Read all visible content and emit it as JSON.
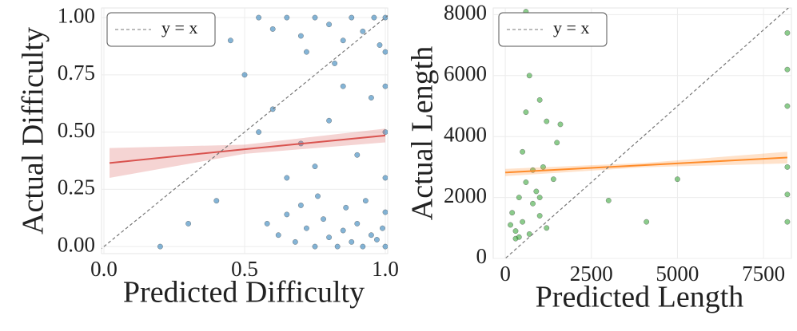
{
  "chart_data": [
    {
      "type": "scatter",
      "xlabel": "Predicted Difficulty",
      "ylabel": "Actual Difficulty",
      "color": "#1f77b4",
      "xlim": [
        -0.0085,
        1.0085
      ],
      "ylim": [
        -0.031,
        1.042
      ],
      "xticks": [
        {
          "value": 0,
          "label": "0.0"
        },
        {
          "value": 0.5,
          "label": "0.5"
        },
        {
          "value": 1,
          "label": "1.0"
        }
      ],
      "yticks": [
        {
          "value": 0,
          "label": "0.00"
        },
        0.25,
        {
          "value": 0.5,
          "label": "0.50"
        },
        0.75,
        {
          "value": 1,
          "label": "1.00"
        }
      ],
      "grid": true,
      "legend": "upper left",
      "legend_label": "y = x",
      "x": [
        0.62,
        0.68,
        0.72,
        0.75,
        0.78,
        0.8,
        0.83,
        0.85,
        0.88,
        0.9,
        0.92,
        0.95,
        0.97,
        1.0,
        1.0,
        0.7,
        0.76,
        0.86,
        0.93,
        0.58,
        0.65,
        0.99,
        0.55,
        0.6,
        0.65,
        0.7,
        0.75,
        0.8,
        0.85,
        0.88,
        0.92,
        0.96,
        1.0,
        1.0,
        0.98,
        0.72,
        0.82,
        0.6,
        0.7,
        0.8,
        0.9,
        0.95,
        0.65,
        0.85,
        0.75,
        0.5,
        0.45,
        0.4,
        0.3,
        0.2,
        1.0,
        1.0,
        1.0,
        0.55
      ],
      "y": [
        0.05,
        0.02,
        0.08,
        0.0,
        0.12,
        0.04,
        0.0,
        0.07,
        0.02,
        0.1,
        0.0,
        0.05,
        0.03,
        0.0,
        0.15,
        0.18,
        0.22,
        0.17,
        0.2,
        0.1,
        0.14,
        0.08,
        1.0,
        0.95,
        1.0,
        0.92,
        1.0,
        0.97,
        0.9,
        1.0,
        0.94,
        1.0,
        1.0,
        0.85,
        0.88,
        0.85,
        0.8,
        0.6,
        0.45,
        0.55,
        0.4,
        0.65,
        0.3,
        0.7,
        0.35,
        0.75,
        0.9,
        0.2,
        0.1,
        0.0,
        0.5,
        0.3,
        0.7,
        0.5
      ],
      "trend": {
        "color": "#d9534f",
        "x": [
          0.02,
          0.5,
          1.0
        ],
        "y": [
          0.365,
          0.425,
          0.485
        ],
        "lower": [
          0.3,
          0.405,
          0.455
        ],
        "upper": [
          0.43,
          0.445,
          0.515
        ]
      }
    },
    {
      "type": "scatter",
      "xlabel": "Predicted Length",
      "ylabel": "Actual Length",
      "color": "#2ca02c",
      "xlim": [
        -350,
        8310
      ],
      "ylim": [
        0,
        8220
      ],
      "xticks": [
        0,
        2500,
        5000,
        7500
      ],
      "yticks": [
        0,
        2000,
        4000,
        6000,
        8000
      ],
      "grid": true,
      "legend": "upper left",
      "legend_label": "y = x",
      "x": [
        200,
        300,
        400,
        500,
        600,
        700,
        800,
        900,
        1000,
        1100,
        1200,
        1400,
        300,
        500,
        600,
        700,
        1000,
        1200,
        1500,
        600,
        800,
        400,
        150,
        1000,
        8192,
        8192,
        8192,
        8192,
        8192,
        8192,
        4100,
        5000,
        3000,
        1600
      ],
      "y": [
        1500,
        900,
        2000,
        1200,
        2500,
        800,
        1800,
        2200,
        1400,
        3000,
        1000,
        2600,
        650,
        3500,
        4800,
        6000,
        5200,
        4500,
        3800,
        8100,
        2900,
        700,
        1100,
        2000,
        1200,
        2100,
        3000,
        6200,
        7400,
        5000,
        1200,
        2600,
        1900,
        4400
      ],
      "trend": {
        "color": "#ff8c2a",
        "x": [
          0,
          4000,
          8192
        ],
        "y": [
          2820,
          3060,
          3310
        ],
        "lower": [
          2700,
          2990,
          3120
        ],
        "upper": [
          2940,
          3130,
          3500
        ]
      }
    }
  ]
}
